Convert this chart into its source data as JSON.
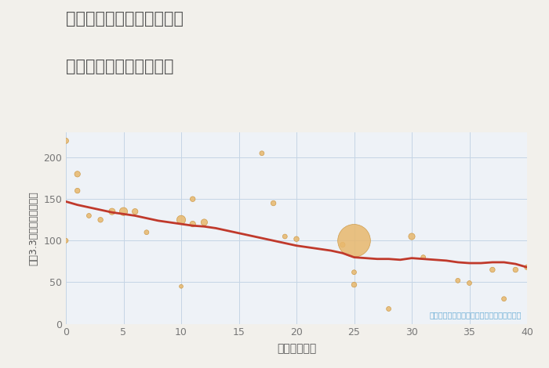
{
  "title_line1": "兵庫県西宮市山口町中野の",
  "title_line2": "築年数別中古戸建て価格",
  "xlabel": "築年数（年）",
  "ylabel": "坪（3.3㎡）単価（万円）",
  "annotation": "円の大きさは、取引のあった物件面積を示す",
  "background_color": "#f2f0eb",
  "plot_bg_color": "#eef2f7",
  "scatter_color": "#e8b86d",
  "scatter_edge_color": "#c9923a",
  "line_color": "#c0392b",
  "grid_color": "#c5d5e5",
  "annotation_color": "#6baed6",
  "title_color": "#555555",
  "tick_color": "#777777",
  "label_color": "#555555",
  "xlim": [
    0,
    40
  ],
  "ylim": [
    0,
    230
  ],
  "xticks": [
    0,
    5,
    10,
    15,
    20,
    25,
    30,
    35,
    40
  ],
  "yticks": [
    0,
    50,
    100,
    150,
    200
  ],
  "scatter_x": [
    0,
    0,
    1,
    1,
    2,
    3,
    4,
    5,
    6,
    7,
    10,
    10,
    11,
    11,
    12,
    17,
    18,
    19,
    20,
    24,
    25,
    25,
    25,
    28,
    30,
    31,
    34,
    35,
    37,
    38,
    39,
    40
  ],
  "scatter_y": [
    220,
    100,
    180,
    160,
    130,
    125,
    135,
    135,
    135,
    110,
    45,
    125,
    120,
    150,
    122,
    205,
    145,
    105,
    102,
    95,
    47,
    62,
    100,
    18,
    105,
    80,
    52,
    49,
    65,
    30,
    65,
    68
  ],
  "scatter_size": [
    25,
    18,
    28,
    22,
    18,
    22,
    35,
    55,
    28,
    18,
    12,
    65,
    28,
    22,
    35,
    18,
    22,
    18,
    22,
    22,
    22,
    18,
    900,
    18,
    35,
    18,
    18,
    18,
    22,
    18,
    22,
    22
  ],
  "trend_x": [
    0,
    1,
    2,
    3,
    4,
    5,
    6,
    7,
    8,
    9,
    10,
    11,
    12,
    13,
    14,
    15,
    16,
    17,
    18,
    19,
    20,
    21,
    22,
    23,
    24,
    25,
    26,
    27,
    28,
    29,
    30,
    31,
    32,
    33,
    34,
    35,
    36,
    37,
    38,
    39,
    40
  ],
  "trend_y": [
    147,
    143,
    140,
    137,
    134,
    132,
    130,
    127,
    124,
    122,
    120,
    118,
    117,
    115,
    112,
    109,
    106,
    103,
    100,
    97,
    94,
    92,
    90,
    88,
    85,
    80,
    79,
    78,
    78,
    77,
    79,
    78,
    77,
    76,
    74,
    73,
    73,
    74,
    74,
    72,
    68
  ]
}
